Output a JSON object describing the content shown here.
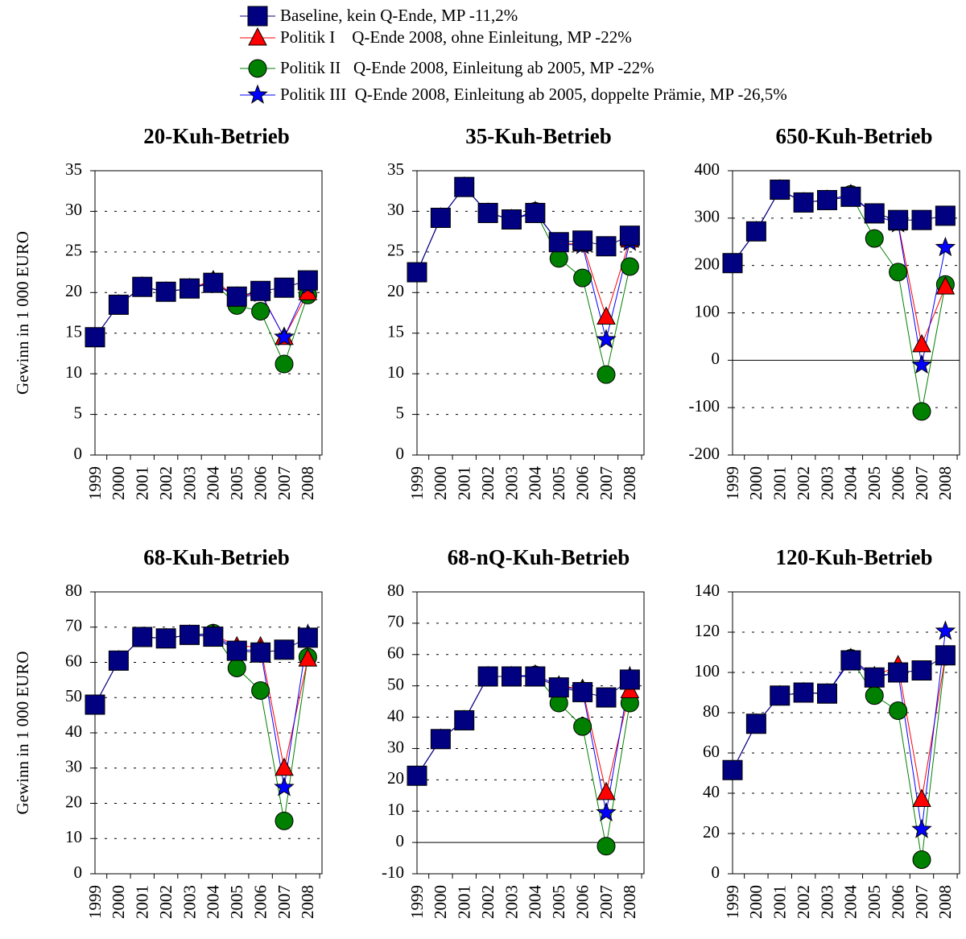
{
  "chart_data": [
    {
      "type": "line",
      "title": "20-Kuh-Betrieb",
      "y_label": "Gewinn in 1 000 EURO",
      "categories": [
        "1999",
        "2000",
        "2001",
        "2002",
        "2003",
        "2004",
        "2005",
        "2006",
        "2007",
        "2008"
      ],
      "ylim": [
        0,
        35
      ],
      "yticks": [
        0,
        5,
        10,
        15,
        20,
        25,
        30,
        35
      ],
      "grid": true,
      "series": [
        {
          "name": "Baseline, kein Q-Ende, MP -11,2%",
          "color": "#000080",
          "marker": "square",
          "values": [
            14.5,
            18.5,
            20.7,
            20.1,
            20.5,
            21.2,
            19.5,
            20.2,
            20.6,
            21.5
          ]
        },
        {
          "name": "Politik I    Q-Ende 2008, ohne Einleitung, MP -22%",
          "color": "#ff0000",
          "marker": "triangle",
          "values": [
            14.5,
            18.5,
            20.7,
            20.1,
            20.5,
            21.5,
            19.5,
            20.0,
            14.5,
            20.0
          ]
        },
        {
          "name": "Politik II   Q-Ende 2008, Einleitung ab 2005, MP -22%",
          "color": "#008000",
          "marker": "circle",
          "values": [
            14.5,
            18.5,
            20.7,
            20.1,
            20.5,
            21.3,
            18.4,
            17.7,
            11.2,
            19.7
          ]
        },
        {
          "name": "Politik III  Q-Ende 2008, Einleitung ab 2005, doppelte Prämie, MP -26,5%",
          "color": "#0000ff",
          "marker": "star",
          "values": [
            14.5,
            18.5,
            20.7,
            20.1,
            20.5,
            21.3,
            19.3,
            19.9,
            14.5,
            20.8
          ]
        }
      ]
    },
    {
      "type": "line",
      "title": "35-Kuh-Betrieb",
      "categories": [
        "1999",
        "2000",
        "2001",
        "2002",
        "2003",
        "2004",
        "2005",
        "2006",
        "2007",
        "2008"
      ],
      "ylim": [
        0,
        35
      ],
      "yticks": [
        0,
        5,
        10,
        15,
        20,
        25,
        30,
        35
      ],
      "grid": true,
      "series": [
        {
          "name": "Baseline, kein Q-Ende, MP -11,2%",
          "color": "#000080",
          "marker": "square",
          "values": [
            22.5,
            29.2,
            33,
            29.8,
            29,
            29.8,
            26.2,
            26.4,
            25.7,
            27
          ]
        },
        {
          "name": "Politik I    Q-Ende 2008, ohne Einleitung, MP -22%",
          "color": "#ff0000",
          "marker": "triangle",
          "values": [
            22.5,
            29.2,
            33,
            29.8,
            29,
            30,
            26,
            26,
            17,
            26.5
          ]
        },
        {
          "name": "Politik II   Q-Ende 2008, Einleitung ab 2005, MP -22%",
          "color": "#008000",
          "marker": "circle",
          "values": [
            22.5,
            29.2,
            33,
            29.8,
            29,
            30,
            24.2,
            21.8,
            9.9,
            23.2
          ]
        },
        {
          "name": "Politik III  Q-Ende 2008, Einleitung ab 2005, doppelte Prämie, MP -26,5%",
          "color": "#0000ff",
          "marker": "star",
          "values": [
            22.5,
            29.2,
            33,
            29.8,
            29,
            30,
            26,
            25.8,
            14.2,
            26.2
          ]
        }
      ]
    },
    {
      "type": "line",
      "title": "650-Kuh-Betrieb",
      "categories": [
        "1999",
        "2000",
        "2001",
        "2002",
        "2003",
        "2004",
        "2005",
        "2006",
        "2007",
        "2008"
      ],
      "ylim": [
        -200,
        400
      ],
      "yticks": [
        -200,
        -100,
        0,
        100,
        200,
        300,
        400
      ],
      "grid": true,
      "series": [
        {
          "name": "Baseline, kein Q-Ende, MP -11,2%",
          "color": "#000080",
          "marker": "square",
          "values": [
            205,
            272,
            360,
            333,
            338,
            345,
            310,
            296,
            296,
            305
          ]
        },
        {
          "name": "Politik I    Q-Ende 2008, ohne Einleitung, MP -22%",
          "color": "#ff0000",
          "marker": "triangle",
          "values": [
            205,
            272,
            360,
            333,
            338,
            350,
            305,
            290,
            33,
            155
          ]
        },
        {
          "name": "Politik II   Q-Ende 2008, Einleitung ab 2005, MP -22%",
          "color": "#008000",
          "marker": "circle",
          "values": [
            205,
            272,
            360,
            333,
            338,
            350,
            257,
            186,
            -108,
            160
          ]
        },
        {
          "name": "Politik III  Q-Ende 2008, Einleitung ab 2005, doppelte Prämie, MP -26,5%",
          "color": "#0000ff",
          "marker": "star",
          "values": [
            205,
            272,
            360,
            333,
            338,
            350,
            307,
            288,
            -10,
            238
          ]
        }
      ]
    },
    {
      "type": "line",
      "title": "68-Kuh-Betrieb",
      "y_label": "Gewinn in 1 000 EURO",
      "categories": [
        "1999",
        "2000",
        "2001",
        "2002",
        "2003",
        "2004",
        "2005",
        "2006",
        "2007",
        "2008"
      ],
      "ylim": [
        0,
        80
      ],
      "yticks": [
        0,
        10,
        20,
        30,
        40,
        50,
        60,
        70,
        80
      ],
      "grid": true,
      "series": [
        {
          "name": "Baseline, kein Q-Ende, MP -11,2%",
          "color": "#000080",
          "marker": "square",
          "values": [
            48,
            60.5,
            67.2,
            66.8,
            67.8,
            67.3,
            63.3,
            62.8,
            63.6,
            67
          ]
        },
        {
          "name": "Politik I    Q-Ende 2008, ohne Einleitung, MP -22%",
          "color": "#ff0000",
          "marker": "triangle",
          "values": [
            48,
            60.5,
            67.2,
            66.8,
            67.8,
            68,
            64.5,
            64.5,
            30,
            61
          ]
        },
        {
          "name": "Politik II   Q-Ende 2008, Einleitung ab 2005, MP -22%",
          "color": "#008000",
          "marker": "circle",
          "values": [
            48,
            60.5,
            67.2,
            66.8,
            67.8,
            68.3,
            58.4,
            52,
            15,
            61.5
          ]
        },
        {
          "name": "Politik III  Q-Ende 2008, Einleitung ab 2005, doppelte Prämie, MP -26,5%",
          "color": "#0000ff",
          "marker": "star",
          "values": [
            48,
            60.5,
            67.2,
            66.8,
            67.8,
            68,
            63.5,
            63.5,
            24.5,
            68
          ]
        }
      ]
    },
    {
      "type": "line",
      "title": "68-nQ-Kuh-Betrieb",
      "categories": [
        "1999",
        "2000",
        "2001",
        "2002",
        "2003",
        "2004",
        "2005",
        "2006",
        "2007",
        "2008"
      ],
      "ylim": [
        -10,
        80
      ],
      "yticks": [
        -10,
        0,
        10,
        20,
        30,
        40,
        50,
        60,
        70,
        80
      ],
      "grid": true,
      "series": [
        {
          "name": "Baseline, kein Q-Ende, MP -11,2%",
          "color": "#000080",
          "marker": "square",
          "values": [
            21.3,
            33,
            39,
            53,
            53,
            53,
            49.5,
            48,
            46.3,
            52
          ]
        },
        {
          "name": "Politik I    Q-Ende 2008, ohne Einleitung, MP -22%",
          "color": "#ff0000",
          "marker": "triangle",
          "values": [
            21.3,
            33,
            39,
            53,
            53,
            53.5,
            50,
            49,
            16,
            48.5
          ]
        },
        {
          "name": "Politik II   Q-Ende 2008, Einleitung ab 2005, MP -22%",
          "color": "#008000",
          "marker": "circle",
          "values": [
            21.3,
            33,
            39,
            53,
            53,
            53.5,
            44.5,
            37,
            -1.2,
            44.5
          ]
        },
        {
          "name": "Politik III  Q-Ende 2008, Einleitung ab 2005, doppelte Prämie, MP -26,5%",
          "color": "#0000ff",
          "marker": "star",
          "values": [
            21.3,
            33,
            39,
            53,
            53,
            53.5,
            50,
            48.5,
            9.5,
            53
          ]
        }
      ]
    },
    {
      "type": "line",
      "title": "120-Kuh-Betrieb",
      "categories": [
        "1999",
        "2000",
        "2001",
        "2002",
        "2003",
        "2004",
        "2005",
        "2006",
        "2007",
        "2008"
      ],
      "ylim": [
        0,
        140
      ],
      "yticks": [
        0,
        20,
        40,
        60,
        80,
        100,
        120,
        140
      ],
      "grid": true,
      "series": [
        {
          "name": "Baseline, kein Q-Ende, MP -11,2%",
          "color": "#000080",
          "marker": "square",
          "values": [
            51.5,
            74.5,
            88.5,
            90,
            89.5,
            106,
            97.5,
            100,
            101,
            108.5
          ]
        },
        {
          "name": "Politik I    Q-Ende 2008, ohne Einleitung, MP -22%",
          "color": "#ff0000",
          "marker": "triangle",
          "values": [
            51.5,
            74.5,
            88.5,
            90,
            89.5,
            107,
            98,
            103.5,
            37,
            108
          ]
        },
        {
          "name": "Politik II   Q-Ende 2008, Einleitung ab 2005, MP -22%",
          "color": "#008000",
          "marker": "circle",
          "values": [
            51.5,
            74.5,
            88.5,
            90,
            89.5,
            107,
            88.5,
            81,
            7,
            108
          ]
        },
        {
          "name": "Politik III  Q-Ende 2008, Einleitung ab 2005, doppelte Prämie, MP -26,5%",
          "color": "#0000ff",
          "marker": "star",
          "values": [
            51.5,
            74.5,
            88.5,
            90,
            89.5,
            107,
            98,
            100,
            22,
            120.5
          ]
        }
      ]
    }
  ]
}
